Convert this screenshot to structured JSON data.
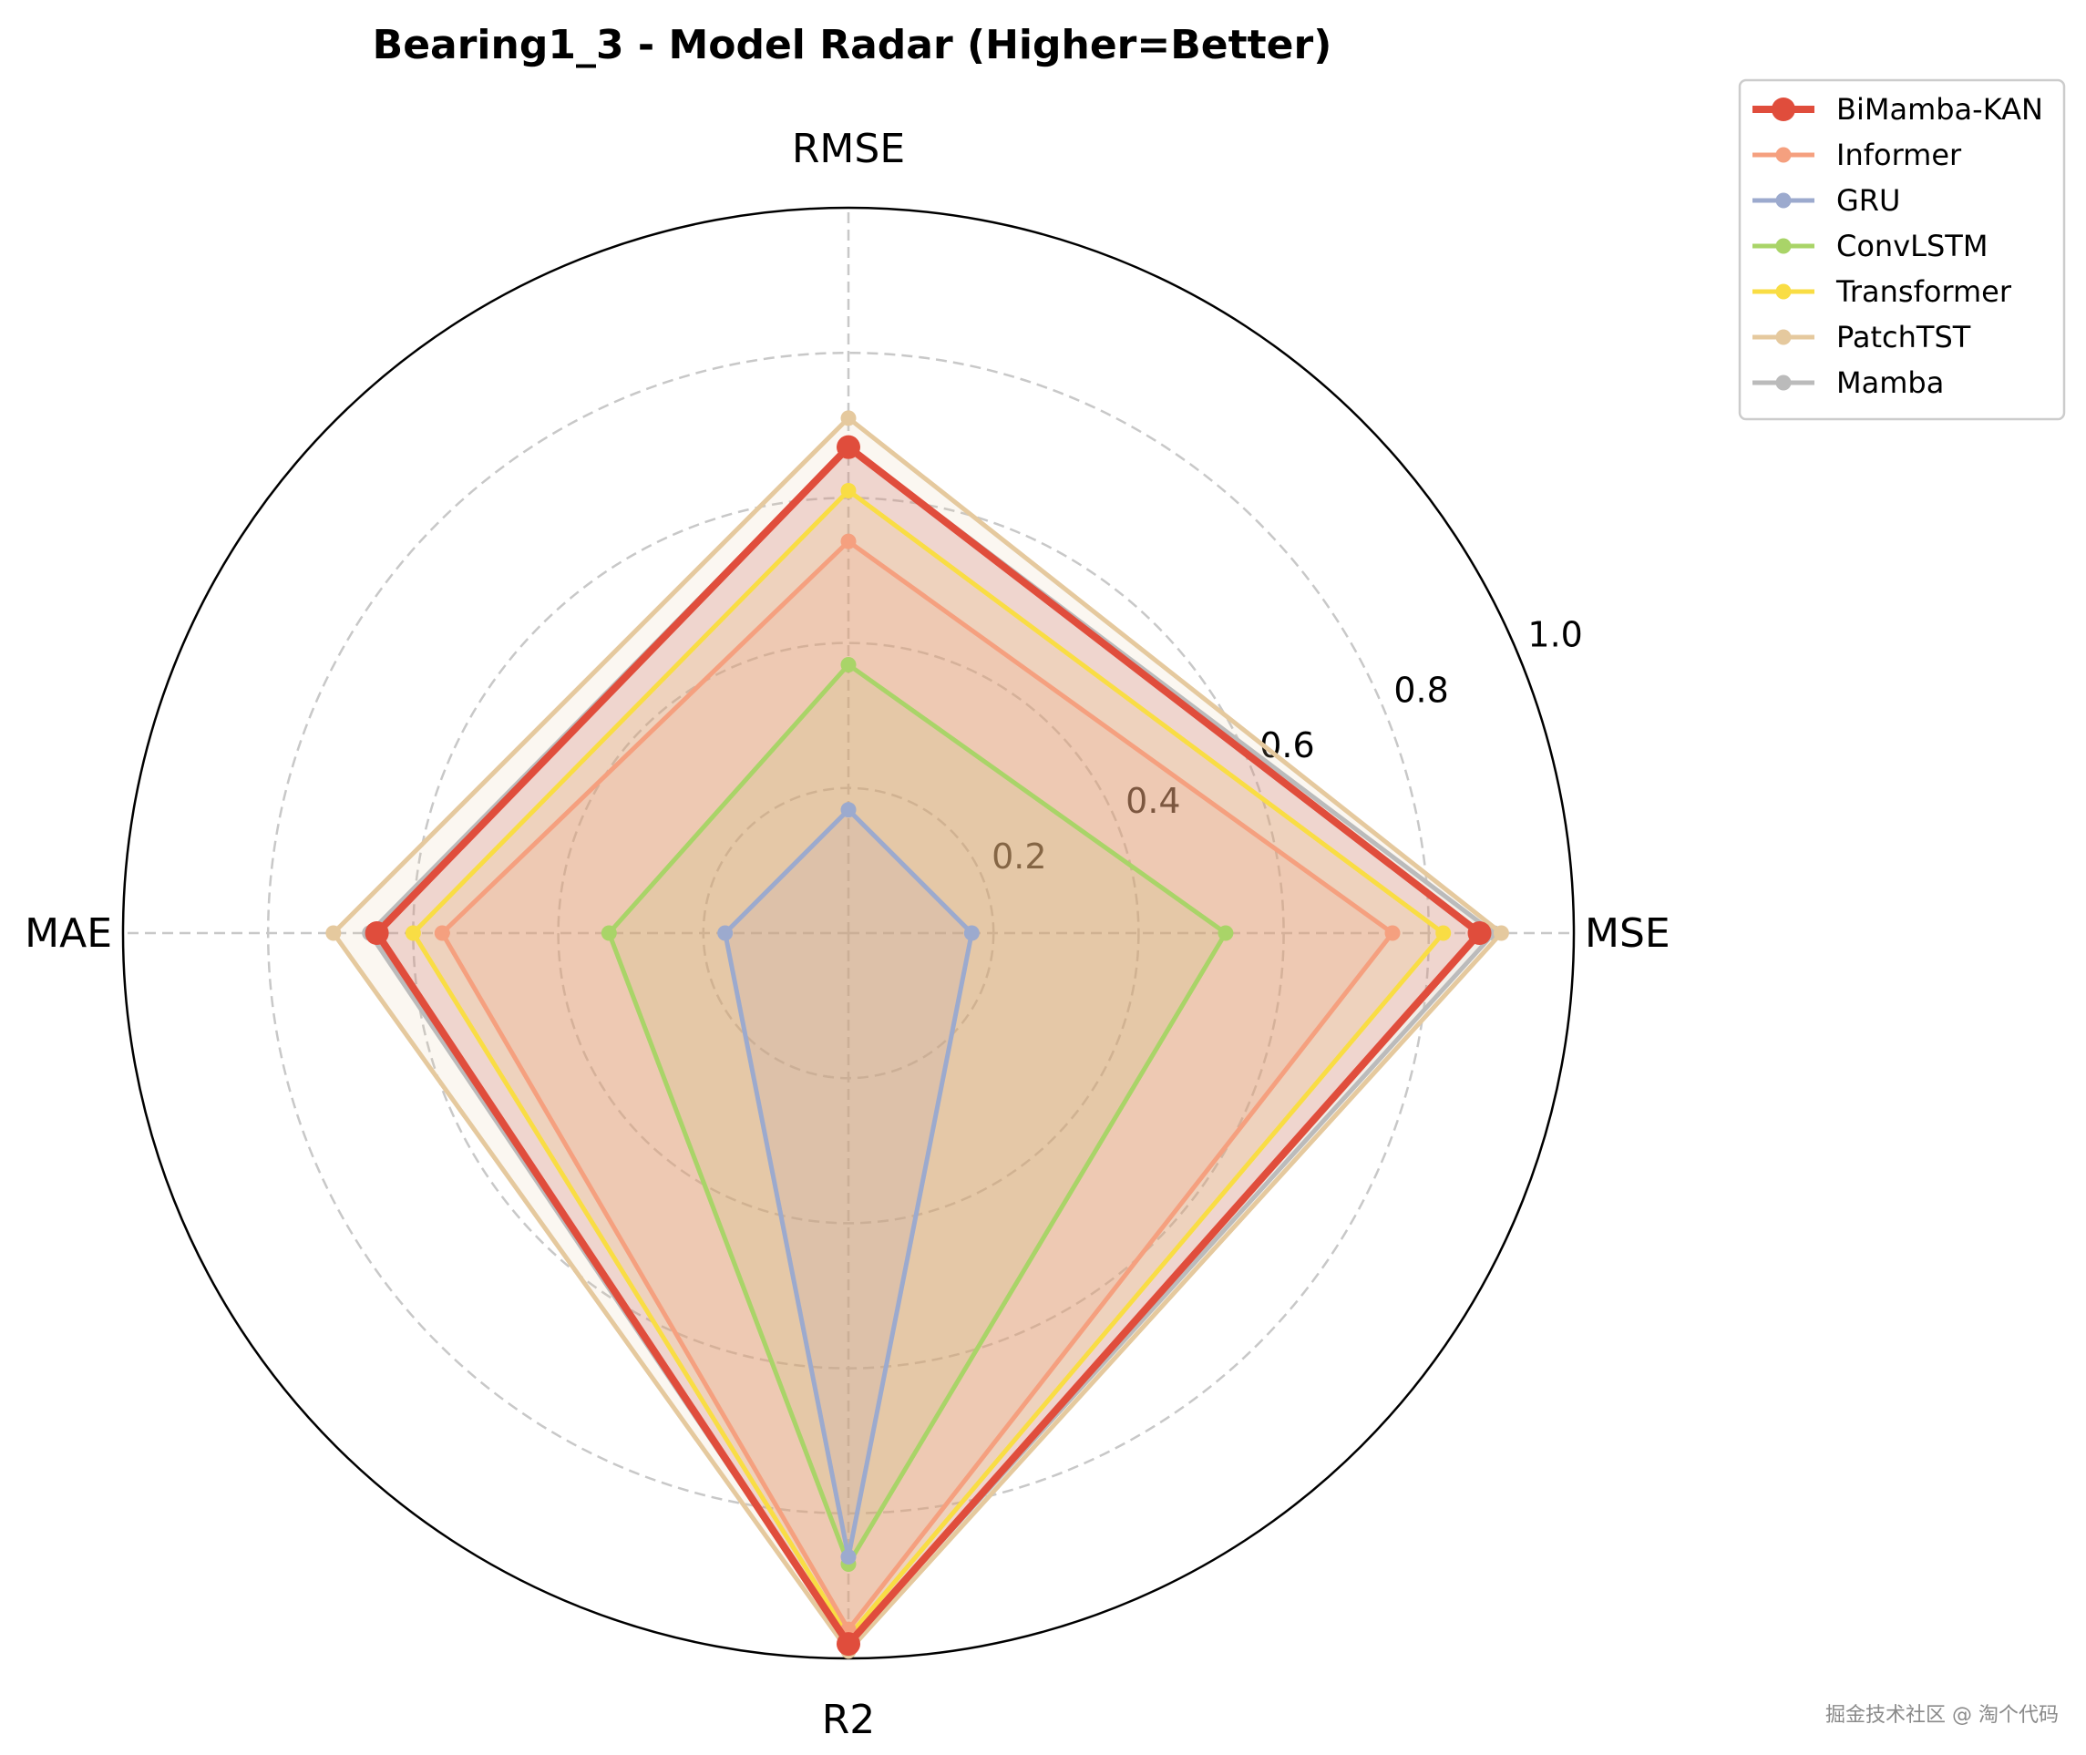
{
  "chart_data": {
    "type": "radar",
    "title": "Bearing1_3 - Model Radar (Higher=Better)",
    "axes": [
      "RMSE",
      "MSE",
      "R2",
      "MAE"
    ],
    "rlim": [
      0,
      1.0
    ],
    "rticks": [
      0.2,
      0.4,
      0.6,
      0.8,
      1.0
    ],
    "rtick_labels": [
      "0.2",
      "0.4",
      "0.6",
      "0.8",
      "1.0"
    ],
    "grid": true,
    "legend_position": "top-right outside",
    "series": [
      {
        "name": "Transformer",
        "color": "#f9dd44",
        "values": [
          0.61,
          0.82,
          0.97,
          0.6
        ]
      },
      {
        "name": "Mamba",
        "color": "#bbbbbb",
        "values": [
          0.67,
          0.89,
          0.98,
          0.66
        ]
      },
      {
        "name": "Informer",
        "color": "#f5a07f",
        "values": [
          0.54,
          0.75,
          0.96,
          0.56
        ]
      },
      {
        "name": "ConvLSTM",
        "color": "#a9d468",
        "values": [
          0.37,
          0.52,
          0.87,
          0.33
        ]
      },
      {
        "name": "GRU",
        "color": "#9caace",
        "values": [
          0.17,
          0.17,
          0.86,
          0.17
        ]
      },
      {
        "name": "PatchTST",
        "color": "#e5c99e",
        "values": [
          0.71,
          0.9,
          0.99,
          0.71
        ]
      },
      {
        "name": "BiMamba-KAN",
        "color": "#e04d3c",
        "values": [
          0.67,
          0.87,
          0.98,
          0.65
        ]
      }
    ],
    "legend_order": [
      "BiMamba-KAN",
      "Informer",
      "GRU",
      "ConvLSTM",
      "Transformer",
      "PatchTST",
      "Mamba"
    ]
  },
  "watermark": "掘金技术社区 @ 淘个代码"
}
